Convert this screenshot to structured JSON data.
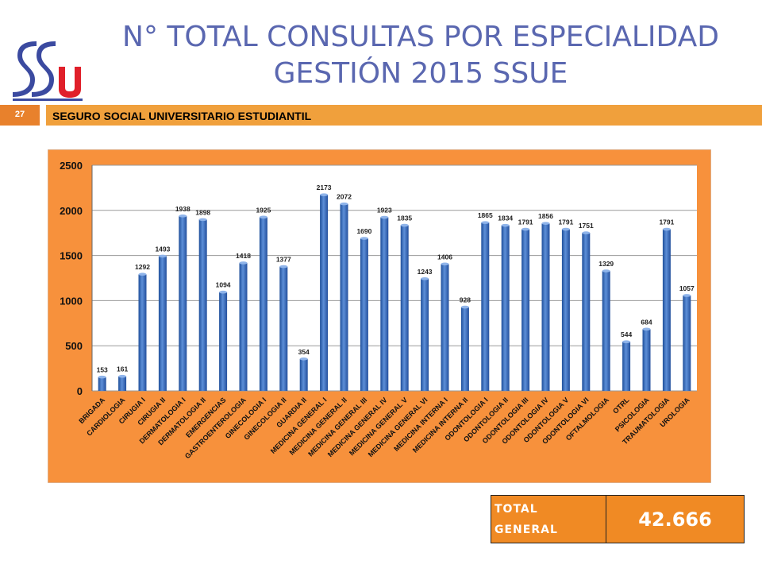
{
  "header": {
    "title_line1": "N° TOTAL CONSULTAS POR ESPECIALIDAD",
    "title_line2": "GESTIÓN 2015 SSUE",
    "logo_text": "SSU",
    "page_number": "27",
    "banner_text": "SEGURO SOCIAL UNIVERSITARIO ESTUDIANTIL"
  },
  "colors": {
    "title": "#5a67b0",
    "banner": "#f0a03c",
    "chart_background": "#f7913c",
    "plot_background": "#ffffff",
    "bar": "#3a6fc0",
    "logo_blue": "#3b4aa0",
    "logo_red": "#e0202a"
  },
  "chart_data": {
    "type": "bar",
    "title": "",
    "xlabel": "",
    "ylabel": "",
    "ylim": [
      0,
      2500
    ],
    "yticks": [
      0,
      500,
      1000,
      1500,
      2000,
      2500
    ],
    "grid": true,
    "legend": "none",
    "categories": [
      "BRIGADA",
      "CARDIOLOGIA",
      "CIRUGIA I",
      "CIRUGIA II",
      "DERMATOLOGIA I",
      "DERMATOLOGIA II",
      "EMERGENCIAS",
      "GASTROENTEROLOGIA",
      "GINECOLOGIA I",
      "GINECOLOGIA II",
      "GUARDIA II",
      "MEDICINA GENERAL I",
      "MEDICINA GENERAL II",
      "MEDICINA GENERAL III",
      "MEDICINA GENERAL IV",
      "MEDICINA GENERAL V",
      "MEDICINA GENERAL VI",
      "MEDICINA INTERNA I",
      "MEDICINA INTERNA II",
      "ODONTOLOGIA I",
      "ODONTOLOGIA II",
      "ODONTOLOGIA III",
      "ODONTOLOGIA IV",
      "ODONTOLOGIA V",
      "ODONTOLOGIA VI",
      "OFTALMOLOGIA",
      "OTRL",
      "PSICOLOGIA",
      "TRAUMATOLOGIA",
      "UROLOGIA"
    ],
    "values": [
      153,
      161,
      1292,
      1493,
      1938,
      1898,
      1094,
      1418,
      1925,
      1377,
      354,
      2173,
      2072,
      1690,
      1923,
      1835,
      1243,
      1406,
      928,
      1865,
      1834,
      1791,
      1856,
      1791,
      1751,
      1329,
      544,
      684,
      1791,
      1057
    ]
  },
  "total": {
    "label": "TOTAL GENERAL",
    "value": "42.666"
  }
}
